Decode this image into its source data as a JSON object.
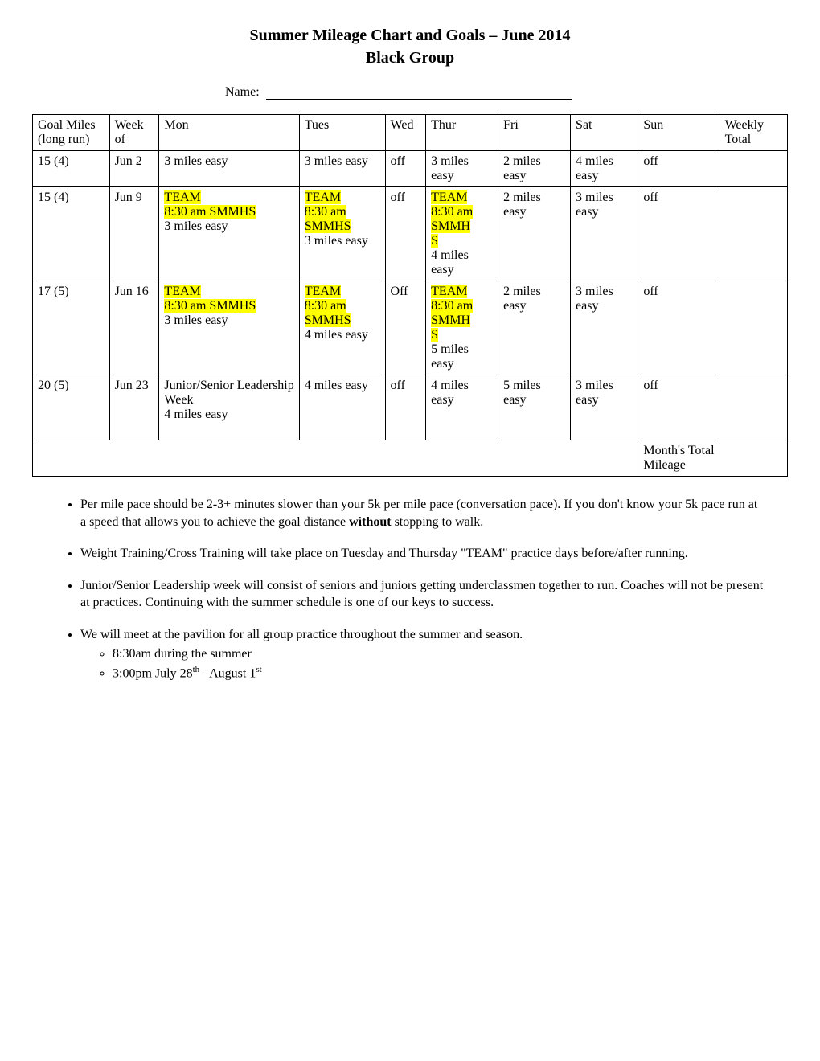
{
  "title_line1": "Summer Mileage Chart and Goals – June 2014",
  "title_line2": "Black Group",
  "name_label": "Name:",
  "headers": {
    "goal": "Goal Miles (long run)",
    "week": "Week of",
    "mon": "Mon",
    "tues": "Tues",
    "wed": "Wed",
    "thur": "Thur",
    "fri": "Fri",
    "sat": "Sat",
    "sun": "Sun",
    "total": "Weekly Total"
  },
  "rows": [
    {
      "goal": "15 (4)",
      "week": "Jun 2",
      "mon_plain": "3 miles easy",
      "tues_plain": "3 miles easy",
      "wed": "off",
      "thur_plain": "3 miles easy",
      "fri": "2 miles easy",
      "sat": "4 miles easy",
      "sun": "off"
    },
    {
      "goal": "15 (4)",
      "week": "Jun 9",
      "mon_hl1": "TEAM",
      "mon_hl2": "8:30 am SMMHS",
      "mon_plain": "3 miles easy",
      "tues_hl1": "TEAM",
      "tues_hl2": "8:30 am",
      "tues_hl3": "SMMHS",
      "tues_plain": "3 miles easy",
      "wed": "off",
      "thur_hl1": "TEAM",
      "thur_hl2": "8:30 am",
      "thur_hl3": "SMMH",
      "thur_hl4": "S",
      "thur_plain": "4 miles easy",
      "fri": "2 miles easy",
      "sat": "3 miles easy",
      "sun": "off"
    },
    {
      "goal": "17 (5)",
      "week": "Jun 16",
      "mon_hl1": "TEAM",
      "mon_hl2": "8:30 am SMMHS",
      "mon_plain": "3 miles easy",
      "tues_hl1": "TEAM",
      "tues_hl2": "8:30 am",
      "tues_hl3": "SMMHS",
      "tues_plain": "4 miles easy",
      "wed": "Off",
      "thur_hl1": "TEAM",
      "thur_hl2": "8:30 am",
      "thur_hl3": "SMMH",
      "thur_hl4": "S",
      "thur_plain": "5 miles easy",
      "fri": "2 miles easy",
      "sat": "3 miles easy",
      "sun": "off"
    },
    {
      "goal": "20 (5)",
      "week": "Jun 23",
      "mon_plain2": "Junior/Senior Leadership Week",
      "mon_plain": "4 miles easy",
      "tues_plain": "4 miles easy",
      "wed": "off",
      "thur_plain": "4 miles easy",
      "fri": "5 miles easy",
      "sat": "3 miles easy",
      "sun": "off"
    }
  ],
  "footer_label": "Month's Total Mileage",
  "bullets": {
    "b1a": "Per mile pace should be 2-3+ minutes slower than your 5k per mile pace (conversation pace). If you don't know your 5k pace run at a speed that allows you to achieve the goal distance ",
    "b1b": "without",
    "b1c": " stopping to walk.",
    "b2": "Weight Training/Cross Training will take place on Tuesday and Thursday \"TEAM\" practice days before/after running.",
    "b3": "Junior/Senior Leadership week will consist of seniors and juniors getting underclassmen together to run. Coaches will not be present at practices.  Continuing with the summer schedule is one of our keys to success.",
    "b4": "We will meet at the pavilion for all group practice throughout the summer and season.",
    "s1": "8:30am during the summer",
    "s2a": "3:00pm July 28",
    "s2b": "th",
    "s2c": " –August 1",
    "s2d": "st"
  },
  "highlight_color": "#ffff00"
}
